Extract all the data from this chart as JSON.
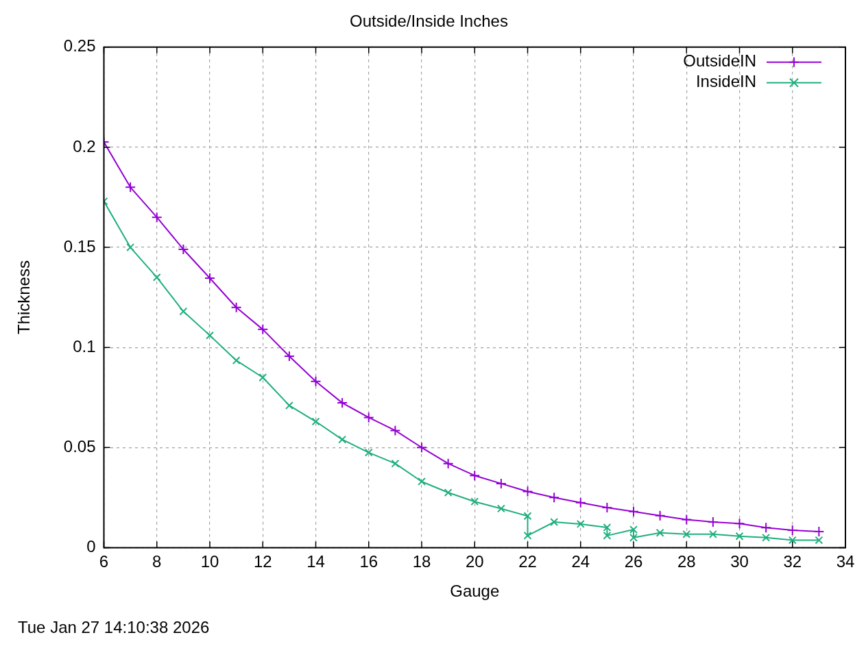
{
  "chart_data": {
    "type": "line",
    "title": "Outside/Inside Inches",
    "xlabel": "Gauge",
    "ylabel": "Thickness",
    "x": [
      6,
      7,
      8,
      9,
      10,
      11,
      12,
      13,
      14,
      15,
      16,
      17,
      18,
      19,
      20,
      21,
      22,
      23,
      24,
      25,
      26,
      27,
      28,
      29,
      30,
      31,
      32,
      33
    ],
    "series": [
      {
        "name": "OutsideIN",
        "color": "#9400d3",
        "values": [
          0.2026,
          0.18,
          0.165,
          0.149,
          0.1346,
          0.12,
          0.109,
          0.0956,
          0.083,
          0.0723,
          0.065,
          0.0585,
          0.05,
          0.042,
          0.036,
          0.032,
          0.028,
          0.025,
          0.0225,
          0.02,
          0.018,
          0.016,
          0.014,
          0.0128,
          0.012,
          0.01,
          0.0087,
          0.008
        ]
      },
      {
        "name": "InsideIN",
        "color": "#1fae7e",
        "x": [
          6,
          7,
          8,
          9,
          10,
          11,
          12,
          13,
          14,
          15,
          16,
          17,
          18,
          19,
          20,
          21,
          22,
          22,
          23,
          24,
          25,
          25,
          26,
          26,
          27,
          28,
          29,
          30,
          31,
          32,
          33
        ],
        "values": [
          0.173,
          0.15,
          0.135,
          0.118,
          0.106,
          0.0935,
          0.085,
          0.071,
          0.063,
          0.054,
          0.0475,
          0.042,
          0.033,
          0.0275,
          0.023,
          0.0195,
          0.0158,
          0.006,
          0.0128,
          0.0118,
          0.0101,
          0.006,
          0.009,
          0.005,
          0.0074,
          0.0067,
          0.0067,
          0.0057,
          0.005,
          0.0037,
          0.0037
        ]
      }
    ],
    "xlim": [
      6,
      34
    ],
    "xticks": [
      6,
      8,
      10,
      12,
      14,
      16,
      18,
      20,
      22,
      24,
      26,
      28,
      30,
      32,
      34
    ],
    "ylim": [
      0,
      0.25
    ],
    "yticks": [
      0,
      0.05,
      0.1,
      0.15,
      0.2,
      0.25
    ],
    "grid": true,
    "legend": "top right",
    "marker": "cross",
    "line_style": "solid",
    "annotations": [
      "Tue Jan 27 14:10:38 2026"
    ]
  }
}
